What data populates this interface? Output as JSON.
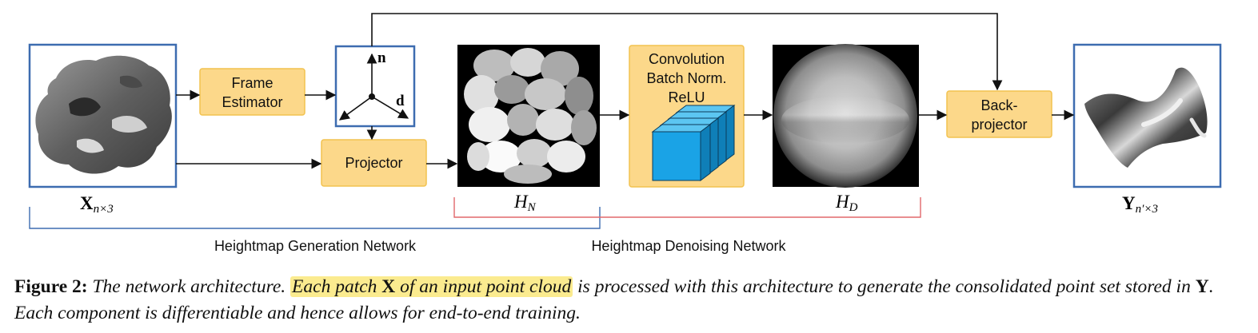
{
  "diagram": {
    "blocks": {
      "frame_estimator": [
        "Frame",
        "Estimator"
      ],
      "projector": "Projector",
      "conv_block": [
        "Convolution",
        "Batch Norm.",
        "ReLU"
      ],
      "back_projector": [
        "Back-",
        "projector"
      ]
    },
    "frame_axes": {
      "normal": "n",
      "direction": "d"
    },
    "labels": {
      "input": {
        "main": "X",
        "sub": "n×3"
      },
      "hn": {
        "main": "H",
        "sub": "N"
      },
      "hd": {
        "main": "H",
        "sub": "D"
      },
      "output": {
        "main": "Y",
        "sub": "n′×3"
      }
    },
    "networks": {
      "generation": "Heightmap Generation Network",
      "denoising": "Heightmap Denoising Network"
    },
    "colors": {
      "block_fill": "#fcd88a",
      "block_stroke": "#f2c24f",
      "frame_border": "#3d6cb0",
      "generation_bracket": "#3d6cb0",
      "denoising_bracket": "#e2686b",
      "cube_fill": "#1aa3e6"
    }
  },
  "caption": {
    "figure_label": "Figure 2:",
    "part1": " The network architecture.",
    "highlight1": "Each patch ",
    "symbol_x": "X",
    "highlight2": " of an input point cloud",
    "part2": " is processed with this architecture to generate the consolidated point set stored in ",
    "symbol_y": "Y",
    "part3": ". Each component is differentiable and hence allows for end-to-end training."
  }
}
